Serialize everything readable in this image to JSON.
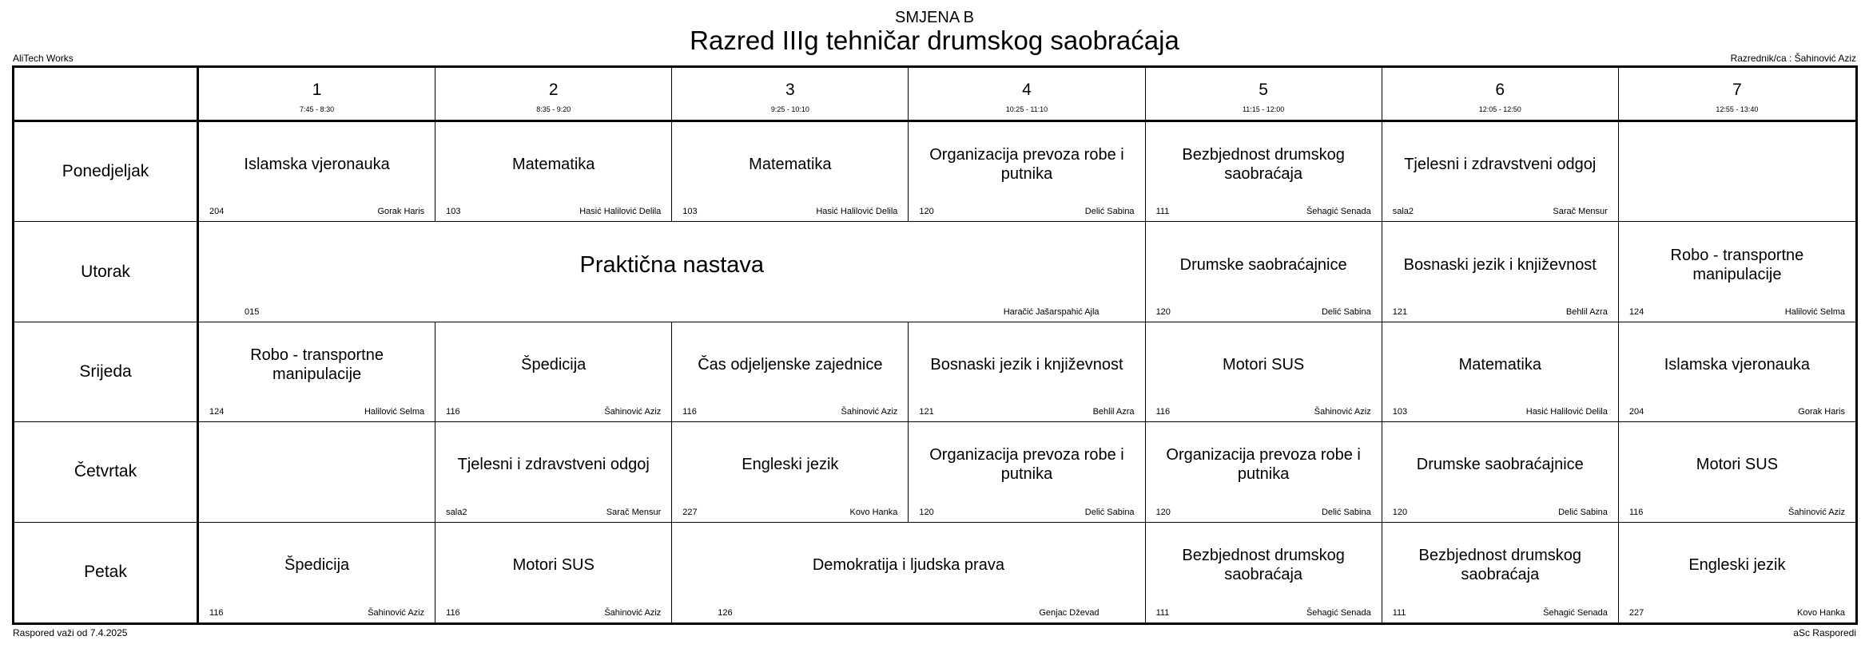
{
  "header": {
    "shift": "SMJENA B",
    "title": "Razred IIIg tehničar drumskog saobraćaja",
    "brand": "AliTech Works",
    "class_teacher": "Razrednik/ca : Šahinović Aziz"
  },
  "footer": {
    "valid_from": "Raspored važi od 7.4.2025",
    "software": "aSc Rasporedi"
  },
  "periods": [
    {
      "num": "1",
      "time": "7:45 - 8:30"
    },
    {
      "num": "2",
      "time": "8:35 - 9:20"
    },
    {
      "num": "3",
      "time": "9:25 - 10:10"
    },
    {
      "num": "4",
      "time": "10:25 - 11:10"
    },
    {
      "num": "5",
      "time": "11:15 - 12:00"
    },
    {
      "num": "6",
      "time": "12:05 - 12:50"
    },
    {
      "num": "7",
      "time": "12:55 - 13:40"
    }
  ],
  "days": [
    "Ponedjeljak",
    "Utorak",
    "Srijeda",
    "Četvrtak",
    "Petak"
  ],
  "lessons": [
    {
      "day": 0,
      "period": 1,
      "span": 1,
      "subject": "Islamska vjeronauka",
      "room": "204",
      "teacher": "Gorak Haris"
    },
    {
      "day": 0,
      "period": 2,
      "span": 1,
      "subject": "Matematika",
      "room": "103",
      "teacher": "Hasić Halilović Delila"
    },
    {
      "day": 0,
      "period": 3,
      "span": 1,
      "subject": "Matematika",
      "room": "103",
      "teacher": "Hasić Halilović Delila"
    },
    {
      "day": 0,
      "period": 4,
      "span": 1,
      "subject": "Organizacija prevoza robe i putnika",
      "room": "120",
      "teacher": "Delić Sabina"
    },
    {
      "day": 0,
      "period": 5,
      "span": 1,
      "subject": "Bezbjednost drumskog saobraćaja",
      "room": "111",
      "teacher": "Šehagić Senada"
    },
    {
      "day": 0,
      "period": 6,
      "span": 1,
      "subject": "Tjelesni i zdravstveni odgoj",
      "room": "sala2",
      "teacher": "Sarač Mensur"
    },
    {
      "day": 0,
      "period": 7,
      "span": 1,
      "subject": "",
      "room": "",
      "teacher": ""
    },
    {
      "day": 1,
      "period": 1,
      "span": 4,
      "subject": "Praktična nastava",
      "room": "015",
      "teacher": "Haračić Jašarspahić Ajla"
    },
    {
      "day": 1,
      "period": 5,
      "span": 1,
      "subject": "Drumske saobraćajnice",
      "room": "120",
      "teacher": "Delić Sabina"
    },
    {
      "day": 1,
      "period": 6,
      "span": 1,
      "subject": "Bosnaski jezik i književnost",
      "room": "121",
      "teacher": "Behlil Azra"
    },
    {
      "day": 1,
      "period": 7,
      "span": 1,
      "subject": "Robo - transportne manipulacije",
      "room": "124",
      "teacher": "Halilović Selma"
    },
    {
      "day": 2,
      "period": 1,
      "span": 1,
      "subject": "Robo - transportne manipulacije",
      "room": "124",
      "teacher": "Halilović Selma"
    },
    {
      "day": 2,
      "period": 2,
      "span": 1,
      "subject": "Špedicija",
      "room": "116",
      "teacher": "Šahinović Aziz"
    },
    {
      "day": 2,
      "period": 3,
      "span": 1,
      "subject": "Čas odjeljenske zajednice",
      "room": "116",
      "teacher": "Šahinović Aziz"
    },
    {
      "day": 2,
      "period": 4,
      "span": 1,
      "subject": "Bosnaski jezik i književnost",
      "room": "121",
      "teacher": "Behlil Azra"
    },
    {
      "day": 2,
      "period": 5,
      "span": 1,
      "subject": "Motori SUS",
      "room": "116",
      "teacher": "Šahinović Aziz"
    },
    {
      "day": 2,
      "period": 6,
      "span": 1,
      "subject": "Matematika",
      "room": "103",
      "teacher": "Hasić Halilović Delila"
    },
    {
      "day": 2,
      "period": 7,
      "span": 1,
      "subject": "Islamska vjeronauka",
      "room": "204",
      "teacher": "Gorak Haris"
    },
    {
      "day": 3,
      "period": 1,
      "span": 1,
      "subject": "",
      "room": "",
      "teacher": ""
    },
    {
      "day": 3,
      "period": 2,
      "span": 1,
      "subject": "Tjelesni i zdravstveni odgoj",
      "room": "sala2",
      "teacher": "Sarač Mensur"
    },
    {
      "day": 3,
      "period": 3,
      "span": 1,
      "subject": "Engleski jezik",
      "room": "227",
      "teacher": "Kovo Hanka"
    },
    {
      "day": 3,
      "period": 4,
      "span": 1,
      "subject": "Organizacija prevoza robe i putnika",
      "room": "120",
      "teacher": "Delić Sabina"
    },
    {
      "day": 3,
      "period": 5,
      "span": 1,
      "subject": "Organizacija prevoza robe i putnika",
      "room": "120",
      "teacher": "Delić Sabina"
    },
    {
      "day": 3,
      "period": 6,
      "span": 1,
      "subject": "Drumske saobraćajnice",
      "room": "120",
      "teacher": "Delić Sabina"
    },
    {
      "day": 3,
      "period": 7,
      "span": 1,
      "subject": "Motori SUS",
      "room": "116",
      "teacher": "Šahinović Aziz"
    },
    {
      "day": 4,
      "period": 1,
      "span": 1,
      "subject": "Špedicija",
      "room": "116",
      "teacher": "Šahinović Aziz"
    },
    {
      "day": 4,
      "period": 2,
      "span": 1,
      "subject": "Motori SUS",
      "room": "116",
      "teacher": "Šahinović Aziz"
    },
    {
      "day": 4,
      "period": 3,
      "span": 2,
      "subject": "Demokratija i ljudska prava",
      "room": "126",
      "teacher": "Genjac Dževad"
    },
    {
      "day": 4,
      "period": 5,
      "span": 1,
      "subject": "Bezbjednost drumskog saobraćaja",
      "room": "111",
      "teacher": "Šehagić Senada"
    },
    {
      "day": 4,
      "period": 6,
      "span": 1,
      "subject": "Bezbjednost drumskog saobraćaja",
      "room": "111",
      "teacher": "Šehagić Senada"
    },
    {
      "day": 4,
      "period": 7,
      "span": 1,
      "subject": "Engleski jezik",
      "room": "227",
      "teacher": "Kovo Hanka"
    }
  ]
}
